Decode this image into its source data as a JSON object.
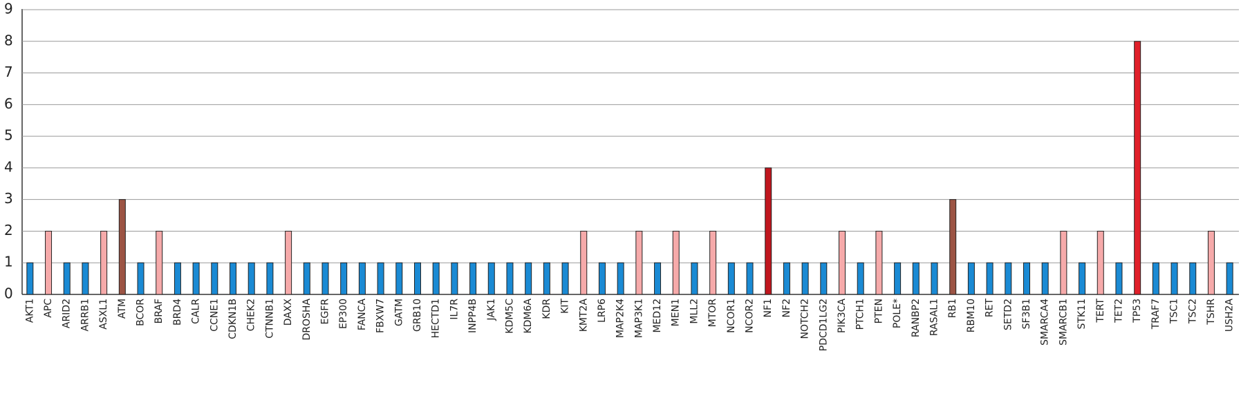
{
  "chart_data": {
    "type": "bar",
    "categories": [
      "AKT1",
      "APC",
      "ARID2",
      "ARRB1",
      "ASXL1",
      "ATM",
      "BCOR",
      "BRAF",
      "BRD4",
      "CALR",
      "CCNE1",
      "CDKN1B",
      "CHEK2",
      "CTNNB1",
      "DAXX",
      "DROSHA",
      "EGFR",
      "EP300",
      "FANCA",
      "FBXW7",
      "GATM",
      "GRB10",
      "HECTD1",
      "IL7R",
      "INPP4B",
      "JAK1",
      "KDM5C",
      "KDM6A",
      "KDR",
      "KIT",
      "KMT2A",
      "LRP6",
      "MAP2K4",
      "MAP3K1",
      "MED12",
      "MEN1",
      "MLL2",
      "MTOR",
      "NCOR1",
      "NCOR2",
      "NF1",
      "NF2",
      "NOTCH2",
      "PDCD1LG2",
      "PIK3CA",
      "PTCH1",
      "PTEN",
      "POLE*",
      "RANBP2",
      "RASAL1",
      "RB1",
      "RBM10",
      "RET",
      "SETD2",
      "SF3B1",
      "SMARCA4",
      "SMARCB1",
      "STK11",
      "TERT",
      "TET2",
      "TP53",
      "TRAF7",
      "TSC1",
      "TSC2",
      "TSHR",
      "USH2A"
    ],
    "values": [
      1,
      2,
      1,
      1,
      2,
      3,
      1,
      2,
      1,
      1,
      1,
      1,
      1,
      1,
      2,
      1,
      1,
      1,
      1,
      1,
      1,
      1,
      1,
      1,
      1,
      1,
      1,
      1,
      1,
      1,
      2,
      1,
      1,
      2,
      1,
      2,
      1,
      2,
      1,
      1,
      4,
      1,
      1,
      1,
      2,
      1,
      2,
      1,
      1,
      1,
      3,
      1,
      1,
      1,
      1,
      1,
      2,
      1,
      2,
      1,
      8,
      1,
      1,
      1,
      2,
      1
    ],
    "colors": [
      "#1a8ad4",
      "#f6aaaa",
      "#1a8ad4",
      "#1a8ad4",
      "#f6aaaa",
      "#9c5444",
      "#1a8ad4",
      "#f6aaaa",
      "#1a8ad4",
      "#1a8ad4",
      "#1a8ad4",
      "#1a8ad4",
      "#1a8ad4",
      "#1a8ad4",
      "#f6aaaa",
      "#1a8ad4",
      "#1a8ad4",
      "#1a8ad4",
      "#1a8ad4",
      "#1a8ad4",
      "#1a8ad4",
      "#1a8ad4",
      "#1a8ad4",
      "#1a8ad4",
      "#1a8ad4",
      "#1a8ad4",
      "#1a8ad4",
      "#1a8ad4",
      "#1a8ad4",
      "#1a8ad4",
      "#f6aaaa",
      "#1a8ad4",
      "#1a8ad4",
      "#f6aaaa",
      "#1a8ad4",
      "#f6aaaa",
      "#1a8ad4",
      "#f6aaaa",
      "#1a8ad4",
      "#1a8ad4",
      "#c0161e",
      "#1a8ad4",
      "#1a8ad4",
      "#1a8ad4",
      "#f6aaaa",
      "#1a8ad4",
      "#f6aaaa",
      "#1a8ad4",
      "#1a8ad4",
      "#1a8ad4",
      "#9c5444",
      "#1a8ad4",
      "#1a8ad4",
      "#1a8ad4",
      "#1a8ad4",
      "#1a8ad4",
      "#f6aaaa",
      "#1a8ad4",
      "#f6aaaa",
      "#1a8ad4",
      "#e0202a",
      "#1a8ad4",
      "#1a8ad4",
      "#1a8ad4",
      "#f6aaaa",
      "#1a8ad4"
    ],
    "ylim": [
      0,
      9
    ],
    "yticks": [
      0,
      1,
      2,
      3,
      4,
      5,
      6,
      7,
      8,
      9
    ],
    "grid": true
  }
}
